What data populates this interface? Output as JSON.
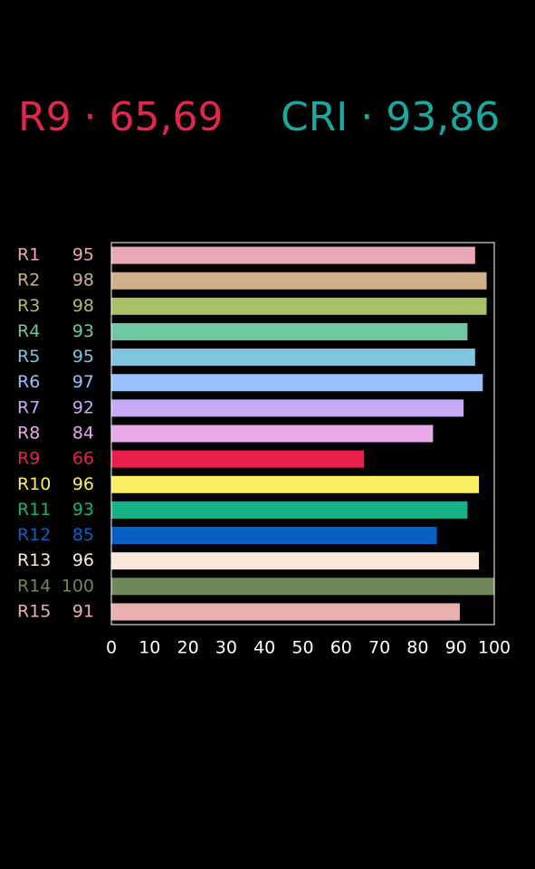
{
  "chart_data": {
    "type": "hbar",
    "annotations": [
      {
        "text": "R9 · 65,69",
        "color": "#e0284f"
      },
      {
        "text": "CRI · 93,86",
        "color": "#1aa8a0"
      }
    ],
    "categories": [
      "R1",
      "R2",
      "R3",
      "R4",
      "R5",
      "R6",
      "R7",
      "R8",
      "R9",
      "R10",
      "R11",
      "R12",
      "R13",
      "R14",
      "R15"
    ],
    "values": [
      95,
      98,
      98,
      93,
      95,
      97,
      92,
      84,
      66,
      96,
      93,
      85,
      96,
      100,
      91
    ],
    "colors": [
      "#e8a8b4",
      "#d0b088",
      "#a8c068",
      "#70c8a0",
      "#80c4e0",
      "#98c0ff",
      "#c8a8f8",
      "#e8a8e8",
      "#e8204c",
      "#f8f060",
      "#18b088",
      "#0860c0",
      "#fce8d8",
      "#708858",
      "#e8b0b0"
    ],
    "xlim": [
      0,
      100
    ],
    "xticks": [
      0,
      10,
      20,
      30,
      40,
      50,
      60,
      70,
      80,
      90,
      100
    ],
    "grid": false
  }
}
